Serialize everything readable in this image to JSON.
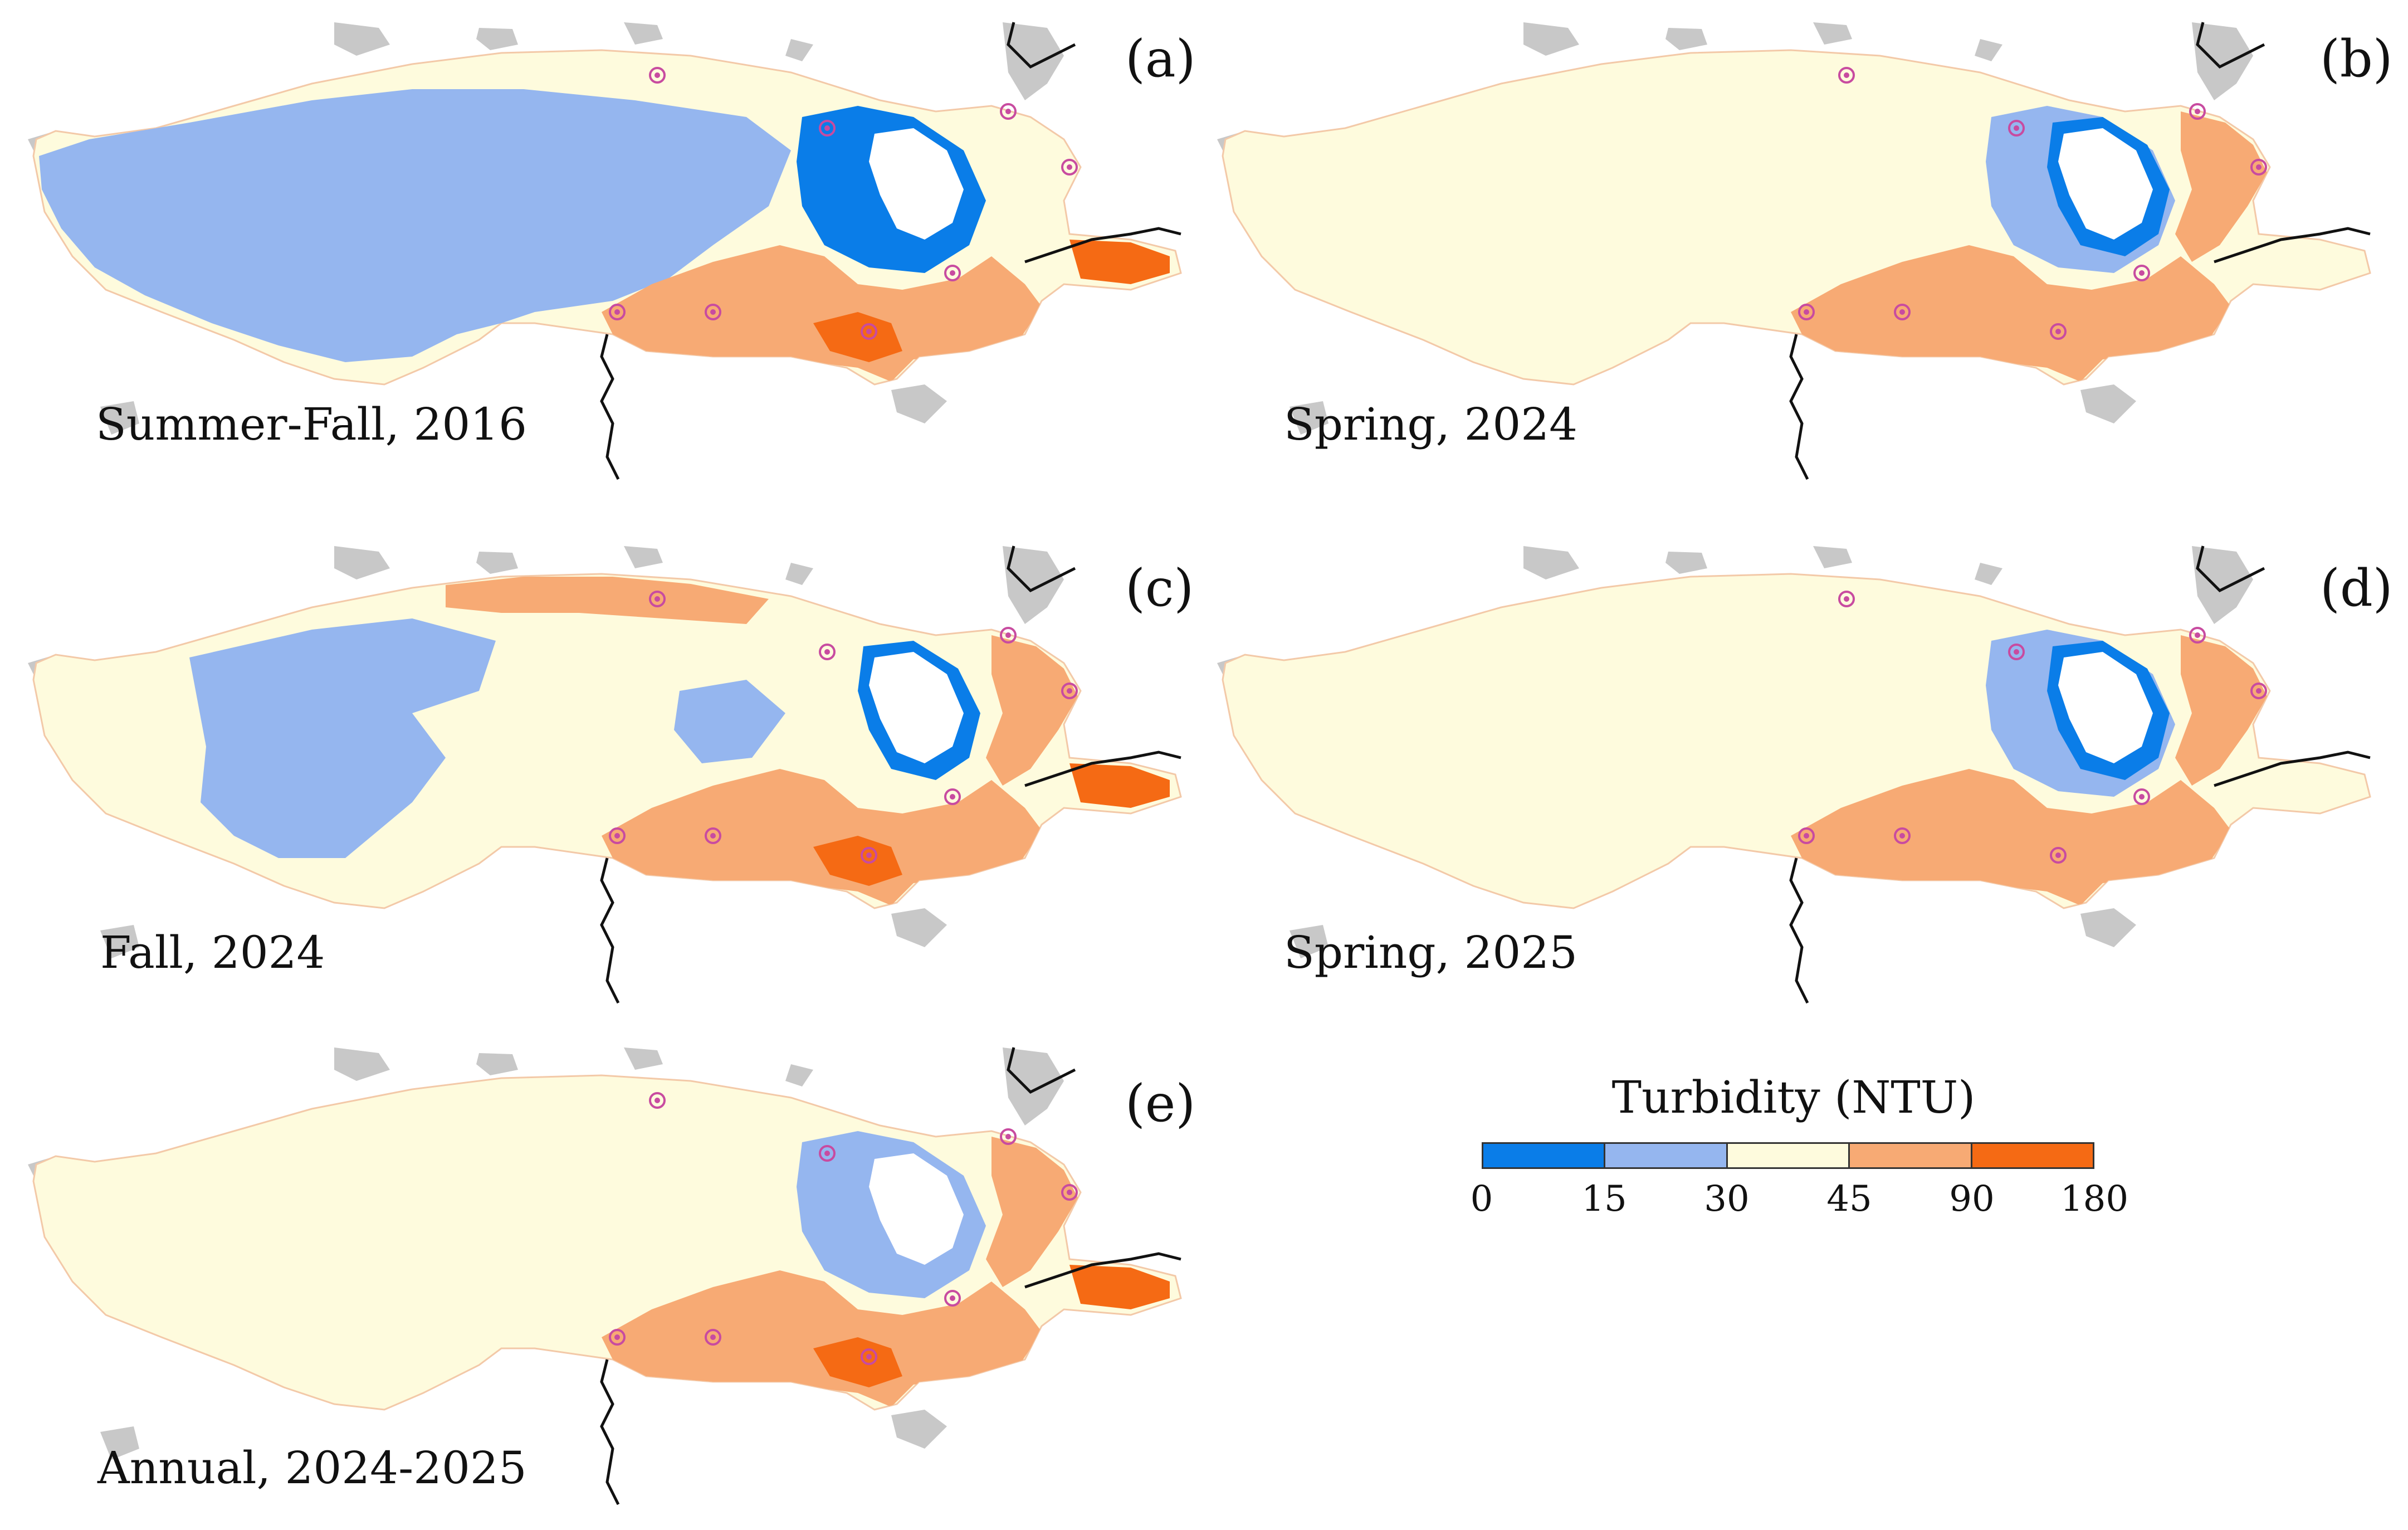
{
  "colors": {
    "land": "#c8c8c8",
    "outline": "#f3c9a8",
    "station": "#c84ba0",
    "border_line": "#111111"
  },
  "legend": {
    "title": "Turbidity (NTU)",
    "ticks": [
      "0",
      "15",
      "30",
      "45",
      "90",
      "180"
    ],
    "classes": [
      {
        "range": "0-15",
        "color": "#0a7de8"
      },
      {
        "range": "15-30",
        "color": "#95b6ef"
      },
      {
        "range": "30-45",
        "color": "#fefbdd"
      },
      {
        "range": "45-90",
        "color": "#f7aa74"
      },
      {
        "range": "90-180",
        "color": "#f56a14"
      }
    ]
  },
  "panels": [
    {
      "id": "a",
      "letter": "(a)",
      "caption": "Summer-Fall, 2016",
      "base": "#fefbdd",
      "layers": [
        {
          "zone": "west",
          "color": "#95b6ef"
        },
        {
          "zone": "north-east",
          "color": "#0a7de8"
        },
        {
          "zone": "south",
          "color": "#f7aa74"
        },
        {
          "zone": "south-spots",
          "color": "#f56a14"
        },
        {
          "zone": "island",
          "color": "#ffffff"
        }
      ]
    },
    {
      "id": "b",
      "letter": "(b)",
      "caption": "Spring, 2024",
      "base": "#fefbdd",
      "layers": [
        {
          "zone": "south",
          "color": "#f7aa74"
        },
        {
          "zone": "east-arm",
          "color": "#f7aa74"
        },
        {
          "zone": "north-east",
          "color": "#95b6ef"
        },
        {
          "zone": "island-ring",
          "color": "#0a7de8"
        },
        {
          "zone": "island",
          "color": "#ffffff"
        }
      ]
    },
    {
      "id": "c",
      "letter": "(c)",
      "caption": "Fall, 2024",
      "base": "#fefbdd",
      "layers": [
        {
          "zone": "west-patches",
          "color": "#95b6ef"
        },
        {
          "zone": "north-strip",
          "color": "#f7aa74"
        },
        {
          "zone": "south",
          "color": "#f7aa74"
        },
        {
          "zone": "east-arm",
          "color": "#f7aa74"
        },
        {
          "zone": "south-spots",
          "color": "#f56a14"
        },
        {
          "zone": "island-ring",
          "color": "#0a7de8"
        },
        {
          "zone": "island",
          "color": "#ffffff"
        }
      ]
    },
    {
      "id": "d",
      "letter": "(d)",
      "caption": "Spring, 2025",
      "base": "#fefbdd",
      "layers": [
        {
          "zone": "south",
          "color": "#f7aa74"
        },
        {
          "zone": "east-arm",
          "color": "#f7aa74"
        },
        {
          "zone": "north-east",
          "color": "#95b6ef"
        },
        {
          "zone": "island-ring",
          "color": "#0a7de8"
        },
        {
          "zone": "island",
          "color": "#ffffff"
        }
      ]
    },
    {
      "id": "e",
      "letter": "(e)",
      "caption": "Annual, 2024-2025",
      "base": "#fefbdd",
      "layers": [
        {
          "zone": "south",
          "color": "#f7aa74"
        },
        {
          "zone": "east-arm",
          "color": "#f7aa74"
        },
        {
          "zone": "north-east",
          "color": "#95b6ef"
        },
        {
          "zone": "south-spots",
          "color": "#f56a14"
        },
        {
          "zone": "island",
          "color": "#ffffff"
        }
      ]
    }
  ]
}
